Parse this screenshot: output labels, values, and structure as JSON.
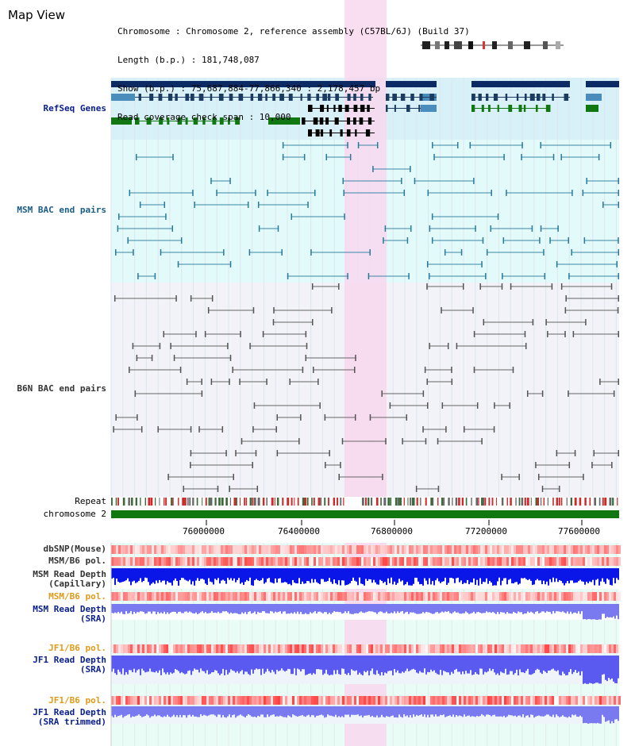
{
  "page": {
    "title": "Map View",
    "header": {
      "chromosome": "Chromosome : Chromosome 2, reference assembly (C57BL/6J) (Build 37)",
      "length": "Length (b.p.) : 181,748,087",
      "show": "Show (b.p.) : 75,687,884-77,866,340 : 2,178,457 bp",
      "span": "Read coverage check span : 10,000"
    }
  },
  "tracks": {
    "refseq": "RefSeq Genes",
    "msm_bac": "MSM BAC end pairs",
    "b6n_bac": "B6N BAC end pairs",
    "repeat": "Repeat",
    "chromosome": "chromosome 2",
    "dbsnp": "dbSNP(Mouse)",
    "msm_b6_pol": "MSM/B6 pol.",
    "msm_depth_cap": [
      "MSM Read Depth",
      "(Capillary)"
    ],
    "msm_b6_pol2": "MSM/B6 pol.",
    "msm_depth_sra": [
      "MSM Read Depth",
      "(SRA)"
    ],
    "jf1_b6_pol": "JF1/B6 pol.",
    "jf1_depth_sra": [
      "JF1 Read Depth",
      "(SRA)"
    ],
    "jf1_b6_pol2": "JF1/B6 pol.",
    "jf1_depth_trim": [
      "JF1 Read Depth",
      "(SRA trimmed)"
    ]
  },
  "axis": {
    "ticks": [
      "76000000",
      "76400000",
      "76800000",
      "77200000",
      "77600000"
    ]
  },
  "colors": {
    "refseq_bg": "#d8f0f8",
    "msm_bg": "#e2fafa",
    "b6n_bg": "#f2f2f8",
    "highlight": "#f8d8ee",
    "chromosome_bar": "#117711",
    "depth_blue": "#1a1ae8",
    "depth_light": "#7878f0"
  }
}
